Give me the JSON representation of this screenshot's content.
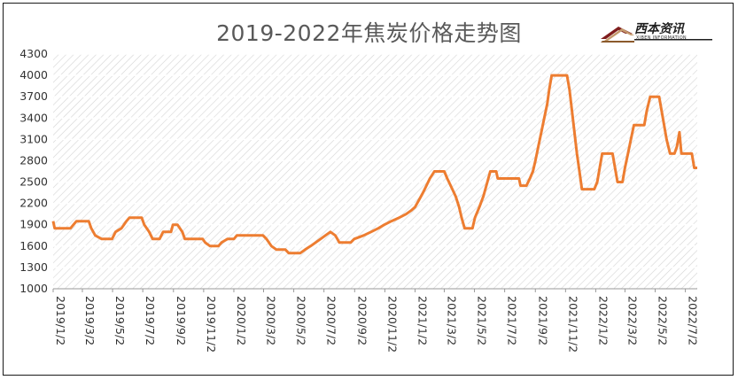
{
  "chart_data": {
    "type": "line",
    "title": "2019-2022年焦炭价格走势图",
    "xlabel": "",
    "ylabel": "",
    "ylim": [
      1000,
      4300
    ],
    "yticks": [
      1000,
      1300,
      1600,
      1900,
      2200,
      2500,
      2800,
      3100,
      3400,
      3700,
      4000,
      4300
    ],
    "xtick_labels": [
      "2019/1/2",
      "2019/3/2",
      "2019/5/2",
      "2019/7/2",
      "2019/9/2",
      "2019/11/2",
      "2020/1/2",
      "2020/3/2",
      "2020/5/2",
      "2020/7/2",
      "2020/9/2",
      "2020/11/2",
      "2021/1/2",
      "2021/3/2",
      "2021/5/2",
      "2021/7/2",
      "2021/9/2",
      "2021/11/2",
      "2022/1/2",
      "2022/3/2",
      "2022/5/2",
      "2022/7/2"
    ],
    "grid": true,
    "legend": "none",
    "line_color": "#ED7D31",
    "series": [
      {
        "points": [
          [
            "2019/1/2",
            1950
          ],
          [
            "2019/1/5",
            1850
          ],
          [
            "2019/2/6",
            1850
          ],
          [
            "2019/2/12",
            1900
          ],
          [
            "2019/2/18",
            1950
          ],
          [
            "2019/3/15",
            1950
          ],
          [
            "2019/3/20",
            1850
          ],
          [
            "2019/3/28",
            1750
          ],
          [
            "2019/4/10",
            1700
          ],
          [
            "2019/5/1",
            1700
          ],
          [
            "2019/5/8",
            1800
          ],
          [
            "2019/5/20",
            1850
          ],
          [
            "2019/5/30",
            1950
          ],
          [
            "2019/6/5",
            2000
          ],
          [
            "2019/6/30",
            2000
          ],
          [
            "2019/7/5",
            1900
          ],
          [
            "2019/7/15",
            1800
          ],
          [
            "2019/7/22",
            1700
          ],
          [
            "2019/8/5",
            1700
          ],
          [
            "2019/8/12",
            1800
          ],
          [
            "2019/8/28",
            1800
          ],
          [
            "2019/9/1",
            1900
          ],
          [
            "2019/9/10",
            1900
          ],
          [
            "2019/9/20",
            1800
          ],
          [
            "2019/9/25",
            1700
          ],
          [
            "2019/10/31",
            1700
          ],
          [
            "2019/11/5",
            1650
          ],
          [
            "2019/11/15",
            1600
          ],
          [
            "2019/12/2",
            1600
          ],
          [
            "2019/12/8",
            1650
          ],
          [
            "2019/12/20",
            1700
          ],
          [
            "2020/1/2",
            1700
          ],
          [
            "2020/1/8",
            1750
          ],
          [
            "2020/3/1",
            1750
          ],
          [
            "2020/3/8",
            1700
          ],
          [
            "2020/3/18",
            1600
          ],
          [
            "2020/3/28",
            1550
          ],
          [
            "2020/4/15",
            1550
          ],
          [
            "2020/4/22",
            1500
          ],
          [
            "2020/5/15",
            1500
          ],
          [
            "2020/5/25",
            1550
          ],
          [
            "2020/6/5",
            1600
          ],
          [
            "2020/6/15",
            1650
          ],
          [
            "2020/6/25",
            1700
          ],
          [
            "2020/7/5",
            1750
          ],
          [
            "2020/7/15",
            1800
          ],
          [
            "2020/7/25",
            1750
          ],
          [
            "2020/8/2",
            1650
          ],
          [
            "2020/8/25",
            1650
          ],
          [
            "2020/9/1",
            1700
          ],
          [
            "2020/9/20",
            1750
          ],
          [
            "2020/10/5",
            1800
          ],
          [
            "2020/10/20",
            1850
          ],
          [
            "2020/11/1",
            1900
          ],
          [
            "2020/11/15",
            1950
          ],
          [
            "2020/12/1",
            2000
          ],
          [
            "2020/12/15",
            2050
          ],
          [
            "2020/12/25",
            2100
          ],
          [
            "2021/1/2",
            2150
          ],
          [
            "2021/1/10",
            2250
          ],
          [
            "2021/1/18",
            2350
          ],
          [
            "2021/1/25",
            2450
          ],
          [
            "2021/2/1",
            2550
          ],
          [
            "2021/2/10",
            2650
          ],
          [
            "2021/3/2",
            2650
          ],
          [
            "2021/3/8",
            2550
          ],
          [
            "2021/3/15",
            2450
          ],
          [
            "2021/3/25",
            2300
          ],
          [
            "2021/4/1",
            2150
          ],
          [
            "2021/4/6",
            2000
          ],
          [
            "2021/4/12",
            1850
          ],
          [
            "2021/4/28",
            1850
          ],
          [
            "2021/5/3",
            2000
          ],
          [
            "2021/5/12",
            2150
          ],
          [
            "2021/5/20",
            2300
          ],
          [
            "2021/5/28",
            2500
          ],
          [
            "2021/6/3",
            2650
          ],
          [
            "2021/6/15",
            2650
          ],
          [
            "2021/6/18",
            2550
          ],
          [
            "2021/7/31",
            2550
          ],
          [
            "2021/8/3",
            2450
          ],
          [
            "2021/8/15",
            2450
          ],
          [
            "2021/8/22",
            2550
          ],
          [
            "2021/8/28",
            2650
          ],
          [
            "2021/9/2",
            2800
          ],
          [
            "2021/9/8",
            3000
          ],
          [
            "2021/9/14",
            3200
          ],
          [
            "2021/9/20",
            3400
          ],
          [
            "2021/9/26",
            3600
          ],
          [
            "2021/9/30",
            3800
          ],
          [
            "2021/10/5",
            4000
          ],
          [
            "2021/11/5",
            4000
          ],
          [
            "2021/11/10",
            3800
          ],
          [
            "2021/11/15",
            3500
          ],
          [
            "2021/11/20",
            3200
          ],
          [
            "2021/11/25",
            2900
          ],
          [
            "2021/12/1",
            2600
          ],
          [
            "2021/12/5",
            2400
          ],
          [
            "2021/12/30",
            2400
          ],
          [
            "2022/1/5",
            2500
          ],
          [
            "2022/1/10",
            2700
          ],
          [
            "2022/1/15",
            2900
          ],
          [
            "2022/2/5",
            2900
          ],
          [
            "2022/2/10",
            2700
          ],
          [
            "2022/2/15",
            2500
          ],
          [
            "2022/2/25",
            2500
          ],
          [
            "2022/3/2",
            2700
          ],
          [
            "2022/3/8",
            2900
          ],
          [
            "2022/3/14",
            3100
          ],
          [
            "2022/3/20",
            3300
          ],
          [
            "2022/4/10",
            3300
          ],
          [
            "2022/4/15",
            3500
          ],
          [
            "2022/4/22",
            3700
          ],
          [
            "2022/5/10",
            3700
          ],
          [
            "2022/5/15",
            3500
          ],
          [
            "2022/5/20",
            3300
          ],
          [
            "2022/5/25",
            3100
          ],
          [
            "2022/6/1",
            2900
          ],
          [
            "2022/6/10",
            2900
          ],
          [
            "2022/6/15",
            3000
          ],
          [
            "2022/6/20",
            3200
          ],
          [
            "2022/6/24",
            2900
          ],
          [
            "2022/7/15",
            2900
          ],
          [
            "2022/7/20",
            2700
          ],
          [
            "2022/7/26",
            2700
          ]
        ]
      }
    ]
  }
}
